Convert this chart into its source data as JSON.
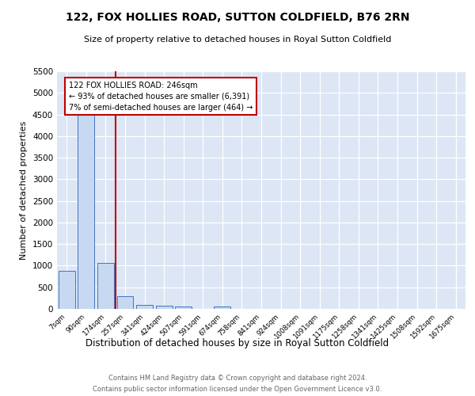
{
  "title": "122, FOX HOLLIES ROAD, SUTTON COLDFIELD, B76 2RN",
  "subtitle": "Size of property relative to detached houses in Royal Sutton Coldfield",
  "xlabel": "Distribution of detached houses by size in Royal Sutton Coldfield",
  "ylabel": "Number of detached properties",
  "footnote1": "Contains HM Land Registry data © Crown copyright and database right 2024.",
  "footnote2": "Contains public sector information licensed under the Open Government Licence v3.0.",
  "bar_labels": [
    "7sqm",
    "90sqm",
    "174sqm",
    "257sqm",
    "341sqm",
    "424sqm",
    "507sqm",
    "591sqm",
    "674sqm",
    "758sqm",
    "841sqm",
    "924sqm",
    "1008sqm",
    "1091sqm",
    "1175sqm",
    "1258sqm",
    "1341sqm",
    "1425sqm",
    "1508sqm",
    "1592sqm",
    "1675sqm"
  ],
  "bar_values": [
    880,
    4550,
    1070,
    295,
    95,
    65,
    55,
    0,
    55,
    0,
    0,
    0,
    0,
    0,
    0,
    0,
    0,
    0,
    0,
    0,
    0
  ],
  "bar_color": "#c6d9f0",
  "bar_edge_color": "#4472c4",
  "ylim": [
    0,
    5500
  ],
  "yticks": [
    0,
    500,
    1000,
    1500,
    2000,
    2500,
    3000,
    3500,
    4000,
    4500,
    5000,
    5500
  ],
  "property_line_x": 2.5,
  "annotation_text_line1": "122 FOX HOLLIES ROAD: 246sqm",
  "annotation_text_line2": "← 93% of detached houses are smaller (6,391)",
  "annotation_text_line3": "7% of semi-detached houses are larger (464) →",
  "line_color": "#c00000",
  "background_color": "#dce6f5",
  "grid_color": "#ffffff",
  "fig_background": "#ffffff"
}
